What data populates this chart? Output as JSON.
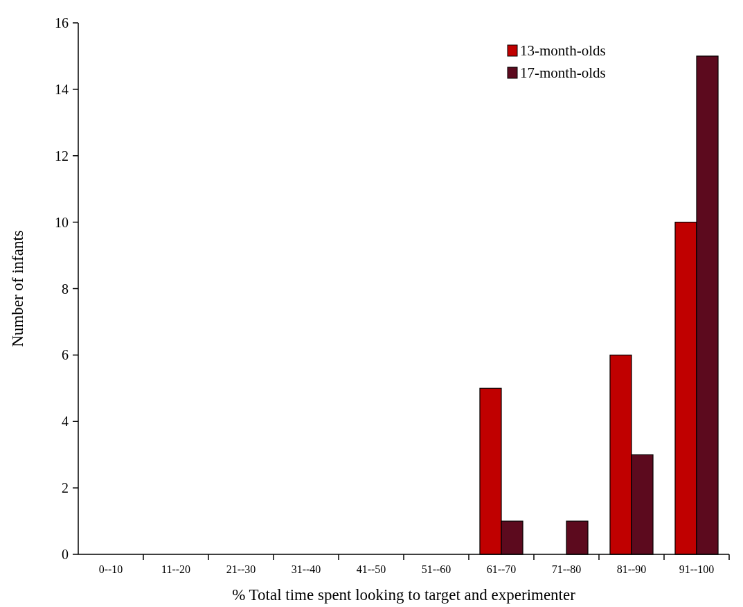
{
  "chart_data": {
    "type": "bar",
    "xlabel": "% Total time spent looking to target and experimenter",
    "ylabel": "Number of infants",
    "categories": [
      "0--10",
      "11--20",
      "21--30",
      "31--40",
      "41--50",
      "51--60",
      "61--70",
      "71--80",
      "81--90",
      "91--100"
    ],
    "series": [
      {
        "name": "13-month-olds",
        "color": "#c00000",
        "values": [
          0,
          0,
          0,
          0,
          0,
          0,
          5,
          0,
          6,
          10
        ]
      },
      {
        "name": "17-month-olds",
        "color": "#5c0a1e",
        "values": [
          0,
          0,
          0,
          0,
          0,
          0,
          1,
          1,
          3,
          15
        ]
      }
    ],
    "ylim": [
      0,
      16
    ],
    "yticks": [
      0,
      2,
      4,
      6,
      8,
      10,
      12,
      14,
      16
    ],
    "grid": false,
    "legend": "top right"
  }
}
